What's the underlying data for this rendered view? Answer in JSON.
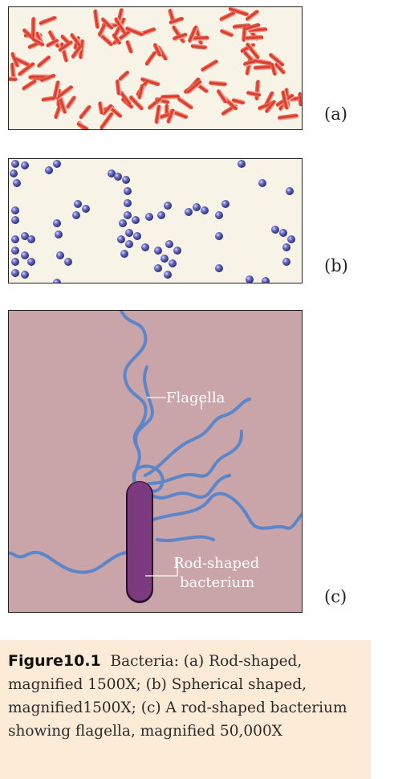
{
  "panels": {
    "a": {
      "label": "(a)"
    },
    "b": {
      "label": "(b)"
    },
    "c": {
      "label": "(c)",
      "flagella_label": "Flagella",
      "bacterium_label_line1": "Rod-shaped",
      "bacterium_label_line2": "bacterium"
    }
  },
  "caption": {
    "figure_label": "Figure10.1",
    "text": "Bacteria: (a) Rod-shaped, magnified 1500X; (b) Spherical shaped, magnified1500X; (c) A rod-shaped bacterium showing flagella, magnified 50,000X"
  },
  "colors": {
    "rod_bacteria": "#d92b20",
    "cocci": "#3c3f93",
    "panel_c_background": "#c9a4a8",
    "bacterium_body": "#7b3b7e",
    "flagella": "#5b86c9",
    "caption_background": "#fcebd6"
  }
}
